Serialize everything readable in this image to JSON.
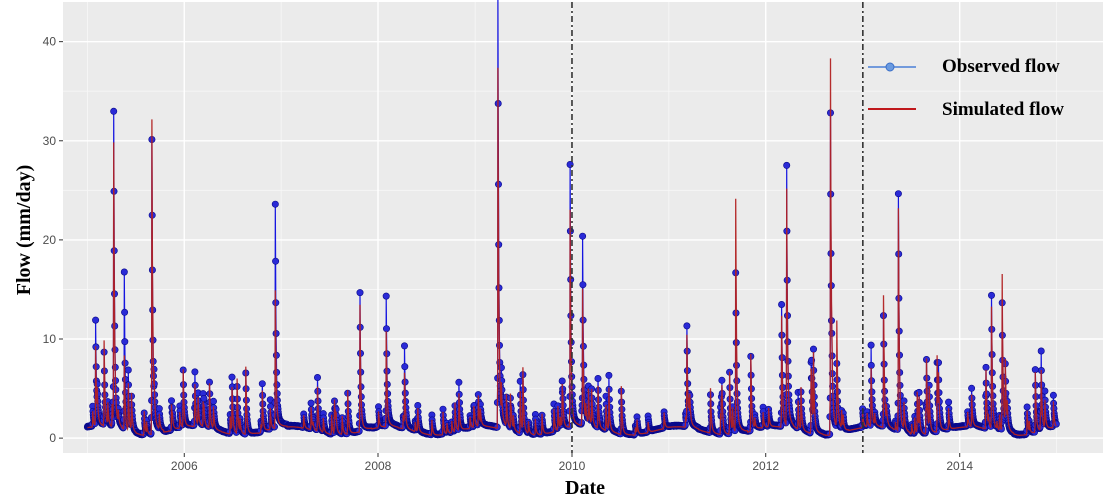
{
  "chart_data": {
    "type": "line",
    "title": "",
    "xlabel": "Date",
    "ylabel": "Flow (mm/day)",
    "xlim": [
      "2004-10-01",
      "2015-06-25"
    ],
    "ylim": [
      -1.5,
      44
    ],
    "x_ticks": [
      "2006",
      "2008",
      "2010",
      "2012",
      "2014"
    ],
    "y_ticks": [
      0,
      10,
      20,
      30,
      40
    ],
    "grid": true,
    "legend_position": "top-right",
    "vertical_reference_lines": [
      "2010-01-01",
      "2013-01-01"
    ],
    "colors": {
      "observed": "#1515e0",
      "simulated": "#b22222",
      "panel": "#ebebeb",
      "grid": "#ffffff"
    },
    "series": [
      {
        "name": "Observed flow",
        "style": "line-with-points",
        "peaks": [
          [
            "2005-02-01",
            10.8
          ],
          [
            "2005-04-10",
            30.4
          ],
          [
            "2005-05-20",
            15.8
          ],
          [
            "2005-09-01",
            28.7
          ],
          [
            "2005-12-15",
            3.0
          ],
          [
            "2006-02-10",
            5.2
          ],
          [
            "2006-07-01",
            1.5
          ],
          [
            "2006-12-10",
            22.0
          ],
          [
            "2007-05-01",
            1.8
          ],
          [
            "2007-10-25",
            14.1
          ],
          [
            "2008-02-01",
            13.2
          ],
          [
            "2008-04-10",
            8.5
          ],
          [
            "2008-11-01",
            5.5
          ],
          [
            "2009-03-28",
            42.0
          ],
          [
            "2009-06-20",
            5.8
          ],
          [
            "2009-12-25",
            25.7
          ],
          [
            "2010-02-10",
            18.3
          ],
          [
            "2010-05-20",
            6.0
          ],
          [
            "2010-10-15",
            2.5
          ],
          [
            "2011-03-10",
            10.2
          ],
          [
            "2011-07-15",
            3.5
          ],
          [
            "2011-09-10",
            16.0
          ],
          [
            "2012-03-01",
            12.5
          ],
          [
            "2012-03-20",
            25.4
          ],
          [
            "2012-06-20",
            7.5
          ],
          [
            "2012-09-01",
            31.3
          ],
          [
            "2012-09-25",
            7.0
          ],
          [
            "2013-02-01",
            8.5
          ],
          [
            "2013-03-20",
            11.5
          ],
          [
            "2013-05-15",
            23.3
          ],
          [
            "2013-08-01",
            4.4
          ],
          [
            "2013-11-20",
            3.5
          ],
          [
            "2014-02-15",
            4.5
          ],
          [
            "2014-05-01",
            13.5
          ],
          [
            "2014-06-10",
            13.0
          ],
          [
            "2014-12-20",
            4.0
          ]
        ]
      },
      {
        "name": "Simulated flow",
        "style": "line",
        "peaks": [
          [
            "2005-02-01",
            8.5
          ],
          [
            "2005-04-10",
            27.5
          ],
          [
            "2005-05-20",
            8.0
          ],
          [
            "2005-09-01",
            30.7
          ],
          [
            "2005-12-15",
            2.5
          ],
          [
            "2006-02-10",
            4.0
          ],
          [
            "2006-07-01",
            1.5
          ],
          [
            "2006-12-10",
            14.0
          ],
          [
            "2007-05-01",
            1.5
          ],
          [
            "2007-10-25",
            13.0
          ],
          [
            "2008-02-01",
            10.0
          ],
          [
            "2008-04-10",
            6.0
          ],
          [
            "2008-11-01",
            4.5
          ],
          [
            "2009-03-28",
            35.0
          ],
          [
            "2009-06-20",
            5.0
          ],
          [
            "2009-12-25",
            21.5
          ],
          [
            "2010-02-10",
            13.5
          ],
          [
            "2010-05-20",
            5.0
          ],
          [
            "2010-10-15",
            2.0
          ],
          [
            "2011-03-10",
            9.5
          ],
          [
            "2011-07-15",
            3.0
          ],
          [
            "2011-09-10",
            23.0
          ],
          [
            "2012-03-01",
            11.5
          ],
          [
            "2012-03-20",
            23.3
          ],
          [
            "2012-06-20",
            7.0
          ],
          [
            "2012-09-01",
            36.5
          ],
          [
            "2012-09-25",
            11.0
          ],
          [
            "2013-02-01",
            6.5
          ],
          [
            "2013-03-20",
            13.5
          ],
          [
            "2013-05-15",
            22.0
          ],
          [
            "2013-08-01",
            4.0
          ],
          [
            "2013-11-20",
            3.0
          ],
          [
            "2014-02-15",
            4.0
          ],
          [
            "2014-05-01",
            12.5
          ],
          [
            "2014-06-10",
            15.8
          ],
          [
            "2014-12-20",
            3.5
          ]
        ]
      }
    ],
    "date_range": [
      "2005-01-01",
      "2014-12-31"
    ]
  }
}
